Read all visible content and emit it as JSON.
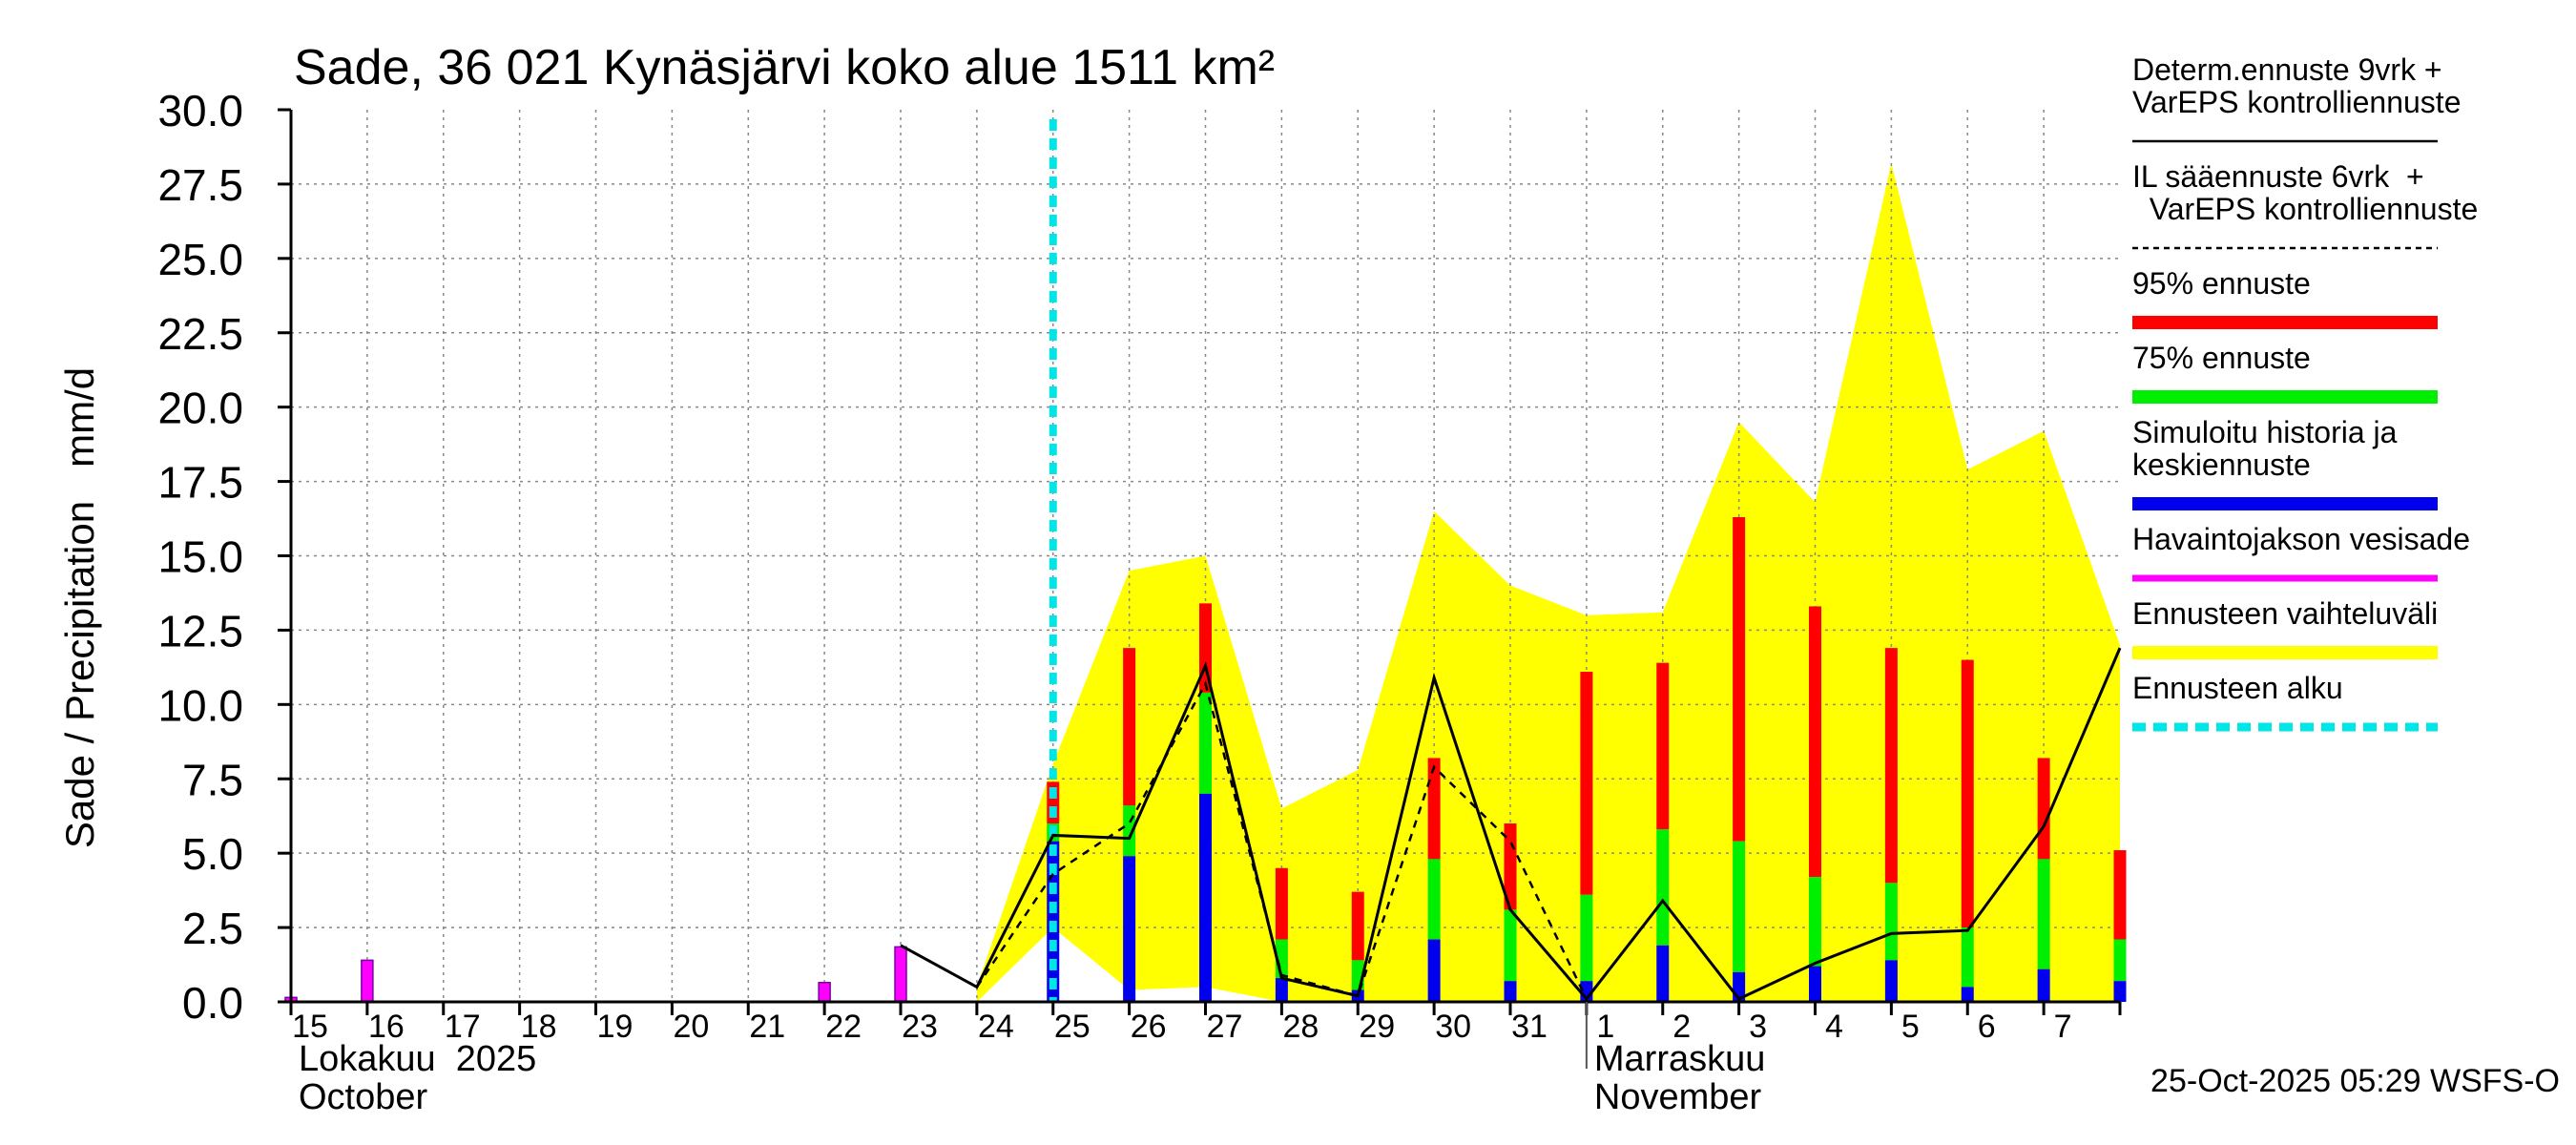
{
  "chart_data": {
    "type": "bar",
    "title": "Sade, 36 021 Kynäsjärvi koko alue 1511 km²",
    "ylabel": "Sade / Precipitation   mm/d",
    "ylim": [
      0,
      30
    ],
    "yticks": [
      "0.0",
      "2.5",
      "5.0",
      "7.5",
      "10.0",
      "12.5",
      "15.0",
      "17.5",
      "20.0",
      "22.5",
      "25.0",
      "27.5",
      "30.0"
    ],
    "x_start": "2025-10-15",
    "days": 24,
    "forecast_start_day": 10,
    "day_labels": [
      "15",
      "16",
      "17",
      "18",
      "19",
      "20",
      "21",
      "22",
      "23",
      "24",
      "25",
      "26",
      "27",
      "28",
      "29",
      "30",
      "31",
      "1",
      "2",
      "3",
      "4",
      "5",
      "6",
      "7"
    ],
    "month_labels": [
      {
        "fi": "Lokakuu  2025",
        "en": "October",
        "day_index": 0
      },
      {
        "fi": "Marraskuu",
        "en": "November",
        "day_index": 17
      }
    ],
    "observed_precip": [
      {
        "day": 0.0,
        "value": 0.15
      },
      {
        "day": 1.0,
        "value": 1.4
      },
      {
        "day": 7.0,
        "value": 0.65
      },
      {
        "day": 8.0,
        "value": 1.85
      }
    ],
    "range_band": {
      "x": [
        9.0,
        10.0,
        11.0,
        12.0,
        13.0,
        14.0,
        15.0,
        16.0,
        17.0,
        18.0,
        19.0,
        20.0,
        21.0,
        22.0,
        23.0,
        24.0
      ],
      "upper": [
        0.5,
        8.0,
        14.5,
        15.0,
        6.5,
        7.8,
        16.5,
        14.0,
        13.0,
        13.1,
        19.5,
        16.8,
        28.2,
        17.9,
        19.2,
        12.0
      ],
      "lower": [
        0.0,
        2.5,
        0.4,
        0.5,
        0.0,
        0.0,
        0.0,
        0.0,
        0.0,
        0.0,
        0.0,
        0.0,
        0.0,
        0.0,
        0.0,
        0.0
      ]
    },
    "forecast_bars": [
      {
        "day": 10.0,
        "p95": 7.4,
        "p75": 6.0,
        "median": 5.4
      },
      {
        "day": 11.0,
        "p95": 11.9,
        "p75": 6.6,
        "median": 4.9
      },
      {
        "day": 12.0,
        "p95": 13.4,
        "p75": 10.4,
        "median": 7.0
      },
      {
        "day": 13.0,
        "p95": 4.5,
        "p75": 2.1,
        "median": 0.8
      },
      {
        "day": 14.0,
        "p95": 3.7,
        "p75": 1.4,
        "median": 0.4
      },
      {
        "day": 15.0,
        "p95": 8.2,
        "p75": 4.8,
        "median": 2.1
      },
      {
        "day": 16.0,
        "p95": 6.0,
        "p75": 3.1,
        "median": 0.7
      },
      {
        "day": 17.0,
        "p95": 11.1,
        "p75": 3.6,
        "median": 0.7
      },
      {
        "day": 18.0,
        "p95": 11.4,
        "p75": 5.8,
        "median": 1.9
      },
      {
        "day": 19.0,
        "p95": 16.3,
        "p75": 5.4,
        "median": 1.0
      },
      {
        "day": 20.0,
        "p95": 13.3,
        "p75": 4.2,
        "median": 1.2
      },
      {
        "day": 21.0,
        "p95": 11.9,
        "p75": 4.0,
        "median": 1.4
      },
      {
        "day": 22.0,
        "p95": 11.5,
        "p75": 2.5,
        "median": 0.5
      },
      {
        "day": 23.0,
        "p95": 8.2,
        "p75": 4.8,
        "median": 1.1
      },
      {
        "day": 24.0,
        "p95": 5.1,
        "p75": 2.1,
        "median": 0.7
      }
    ],
    "determ_line": {
      "x": [
        8.0,
        9.0,
        10.0,
        11.0,
        12.0,
        13.0,
        14.0,
        15.0,
        16.0,
        17.0,
        18.0,
        19.0,
        20.0,
        21.0,
        22.0,
        23.0,
        24.0
      ],
      "y": [
        1.9,
        0.5,
        5.6,
        5.5,
        11.3,
        0.8,
        0.2,
        10.9,
        3.1,
        0.1,
        3.4,
        0.1,
        1.3,
        2.3,
        2.4,
        5.9,
        11.9
      ]
    },
    "il_line": {
      "x": [
        9.0,
        10.0,
        11.0,
        12.0,
        13.0,
        14.0,
        15.0,
        16.0,
        17.0,
        18.0
      ],
      "y": [
        0.5,
        4.3,
        6.0,
        10.7,
        0.9,
        0.2,
        7.9,
        5.4,
        0.1,
        3.4
      ]
    },
    "legend": [
      {
        "label": "Determ.ennuste 9vrk +\nVarEPS kontrolliennuste",
        "style": "solid-thin",
        "color": "#000000"
      },
      {
        "label": "IL sääennuste 6vrk  +\n  VarEPS kontrolliennuste",
        "style": "dashed-thin",
        "color": "#000000"
      },
      {
        "label": "95% ennuste",
        "style": "thick",
        "color": "#ff0000"
      },
      {
        "label": "75% ennuste",
        "style": "thick",
        "color": "#00ee00"
      },
      {
        "label": "Simuloitu historia ja\nkeskiennuste",
        "style": "thick",
        "color": "#0000ee"
      },
      {
        "label": "Havaintojakson vesisade",
        "style": "medium",
        "color": "#ff00ff"
      },
      {
        "label": "Ennusteen vaihteluväli",
        "style": "thick",
        "color": "#ffff00"
      },
      {
        "label": "Ennusteen alku",
        "style": "dashed-thick",
        "color": "#00e5e5"
      }
    ],
    "footer": "25-Oct-2025 05:29 WSFS-O"
  },
  "colors": {
    "p95": "#ff0000",
    "p75": "#00ee00",
    "median": "#0000ee",
    "observed": "#ff00ff",
    "range": "#ffff00",
    "forecast_start": "#00e5e5",
    "grid": "#888888",
    "axis": "#000000"
  }
}
